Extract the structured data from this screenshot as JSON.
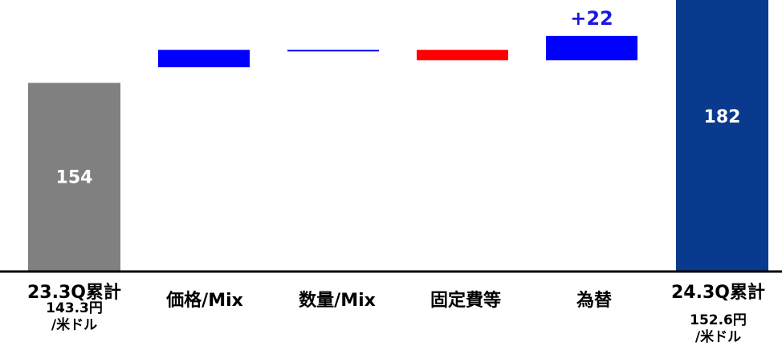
{
  "chart_data": {
    "type": "bar",
    "subtype": "waterfall",
    "categories": [
      "23.3Q累計",
      "価格/Mix",
      "数量/Mix",
      "固定費等",
      "為替",
      "24.3Q累計"
    ],
    "start": {
      "category": "23.3Q累計",
      "value": 154,
      "label": "154",
      "note_line1": "143.3円",
      "note_line2": "/米ドル",
      "color": "#808080"
    },
    "steps": [
      {
        "category": "価格/Mix",
        "from": 158.5,
        "to": 163.5,
        "label": "",
        "color": "#0000ff"
      },
      {
        "category": "数量/Mix",
        "from": 163.5,
        "to": 163.5,
        "label": "",
        "color": "#0000ff"
      },
      {
        "category": "固定費等",
        "from": 163.5,
        "to": 160.5,
        "label": "",
        "color": "#ff0000"
      },
      {
        "category": "為替",
        "from": 160.5,
        "to": 167.5,
        "label": "+22",
        "color": "#0000ff"
      }
    ],
    "end": {
      "category": "24.3Q累計",
      "value": 182,
      "label": "182",
      "note_line1": "152.6円",
      "note_line2": "/米ドル",
      "color": "#0a3a8e"
    },
    "delta_label_color": "#1a1adc",
    "ylim": [
      100,
      170
    ],
    "grid": false,
    "legend": "none"
  }
}
